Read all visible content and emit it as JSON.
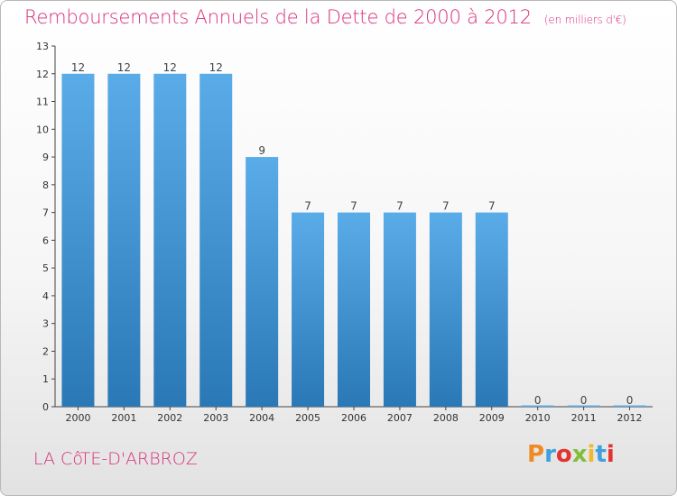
{
  "header": {
    "title": "Remboursements Annuels de la Dette de 2000 à 2012",
    "unit": "(en milliers d'€)"
  },
  "footer": {
    "place": "LA CôTE-D'ARBROZ",
    "logo_text": "Proxiti",
    "logo_colors": [
      "#f08a24",
      "#3fa0dc",
      "#e2332f",
      "#7fbf3a",
      "#f0b82c",
      "#3fa0dc",
      "#e2332f"
    ]
  },
  "chart_data": {
    "type": "bar",
    "title": "Remboursements Annuels de la Dette de 2000 à 2012",
    "categories": [
      "2000",
      "2001",
      "2002",
      "2003",
      "2004",
      "2005",
      "2006",
      "2007",
      "2008",
      "2009",
      "2010",
      "2011",
      "2012"
    ],
    "values": [
      12,
      12,
      12,
      12,
      9,
      7,
      7,
      7,
      7,
      7,
      0,
      0,
      0
    ],
    "data_labels": [
      "12",
      "12",
      "12",
      "12",
      "9",
      "7",
      "7",
      "7",
      "7",
      "7",
      "0",
      "0",
      "0"
    ],
    "ylim": [
      0,
      13
    ],
    "yticks": [
      0,
      1,
      2,
      3,
      4,
      5,
      6,
      7,
      8,
      9,
      10,
      11,
      12,
      13
    ],
    "ytick_labels": [
      "0",
      "1",
      "2",
      "3",
      "4",
      "5",
      "6",
      "7",
      "8",
      "9",
      "10",
      "11",
      "12",
      "13"
    ],
    "grid": false,
    "bar_color_top": "#5aace8",
    "bar_color_bottom": "#2a78b6"
  }
}
